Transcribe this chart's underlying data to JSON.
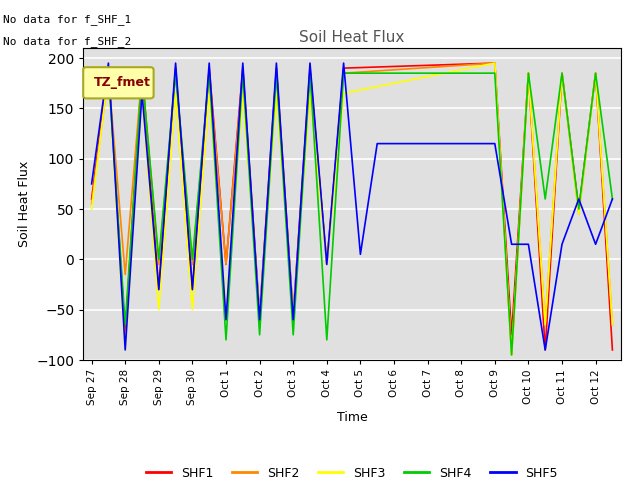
{
  "title": "Soil Heat Flux",
  "ylabel": "Soil Heat Flux",
  "xlabel": "Time",
  "ylim": [
    -100,
    210
  ],
  "yticks": [
    -100,
    -50,
    0,
    50,
    100,
    150,
    200
  ],
  "note1": "No data for f_SHF_1",
  "note2": "No data for f_SHF_2",
  "legend_label": "TZ_fmet",
  "bg_color": "#e0e0e0",
  "x_tick_labels": [
    "Sep 27",
    "Sep 28",
    "Sep 29",
    "Sep 30",
    "Oct 1",
    "Oct 2",
    "Oct 3",
    "Oct 4",
    "Oct 5",
    "Oct 6",
    "Oct 7",
    "Oct 8",
    "Oct 9",
    "Oct 10",
    "Oct 11",
    "Oct 12"
  ],
  "x_tick_positions": [
    0,
    2,
    4,
    6,
    8,
    10,
    12,
    14,
    16,
    18,
    20,
    22,
    24,
    26,
    28,
    30
  ],
  "series": {
    "SHF1": {
      "color": "#ff0000",
      "x": [
        0,
        1,
        2,
        3,
        4,
        5,
        6,
        7,
        8,
        9,
        10,
        11,
        12,
        13,
        14,
        15,
        24,
        25,
        26,
        27,
        28,
        29,
        30,
        31
      ],
      "y": [
        60,
        190,
        -75,
        190,
        -30,
        190,
        -30,
        190,
        -5,
        190,
        -55,
        190,
        -55,
        190,
        -5,
        190,
        195,
        -75,
        185,
        -90,
        185,
        50,
        185,
        -90
      ]
    },
    "SHF2": {
      "color": "#ff8800",
      "x": [
        0,
        1,
        2,
        3,
        4,
        5,
        6,
        7,
        8,
        9,
        10,
        11,
        12,
        13,
        14,
        15,
        24,
        25,
        26,
        27,
        28,
        29,
        30,
        31
      ],
      "y": [
        55,
        185,
        -15,
        185,
        -5,
        185,
        -5,
        185,
        -5,
        185,
        -60,
        185,
        -60,
        185,
        -5,
        185,
        195,
        -95,
        185,
        -65,
        185,
        45,
        185,
        -65
      ]
    },
    "SHF3": {
      "color": "#ffff00",
      "x": [
        0,
        1,
        2,
        3,
        4,
        5,
        6,
        7,
        8,
        9,
        10,
        11,
        12,
        13,
        14,
        15,
        24,
        25,
        26,
        27,
        28,
        29,
        30,
        31
      ],
      "y": [
        50,
        185,
        -90,
        165,
        -50,
        165,
        -50,
        165,
        -50,
        165,
        -55,
        165,
        -55,
        165,
        -5,
        165,
        195,
        -95,
        185,
        -65,
        185,
        45,
        185,
        -65
      ]
    },
    "SHF4": {
      "color": "#00cc00",
      "x": [
        0,
        1,
        2,
        3,
        4,
        5,
        6,
        7,
        8,
        9,
        10,
        11,
        12,
        13,
        14,
        15,
        24,
        25,
        26,
        27,
        28,
        29,
        30,
        31
      ],
      "y": [
        170,
        185,
        -65,
        185,
        0,
        185,
        0,
        185,
        -80,
        185,
        -75,
        185,
        -75,
        185,
        -80,
        185,
        185,
        -95,
        185,
        60,
        185,
        50,
        185,
        60
      ]
    },
    "SHF5": {
      "color": "#0000ff",
      "x": [
        0,
        1,
        2,
        3,
        4,
        5,
        6,
        7,
        8,
        9,
        10,
        11,
        12,
        13,
        14,
        15,
        16,
        17,
        18,
        19,
        20,
        21,
        22,
        23,
        24,
        25,
        26,
        27,
        28,
        29,
        30,
        31
      ],
      "y": [
        75,
        195,
        -90,
        165,
        -30,
        195,
        -30,
        195,
        -60,
        195,
        -60,
        195,
        -60,
        195,
        -5,
        195,
        5,
        115,
        115,
        115,
        115,
        115,
        115,
        115,
        115,
        15,
        15,
        -90,
        15,
        60,
        15,
        60
      ]
    }
  },
  "legend_entries": [
    {
      "label": "SHF1",
      "color": "#ff0000"
    },
    {
      "label": "SHF2",
      "color": "#ff8800"
    },
    {
      "label": "SHF3",
      "color": "#ffff00"
    },
    {
      "label": "SHF4",
      "color": "#00cc00"
    },
    {
      "label": "SHF5",
      "color": "#0000ff"
    }
  ]
}
